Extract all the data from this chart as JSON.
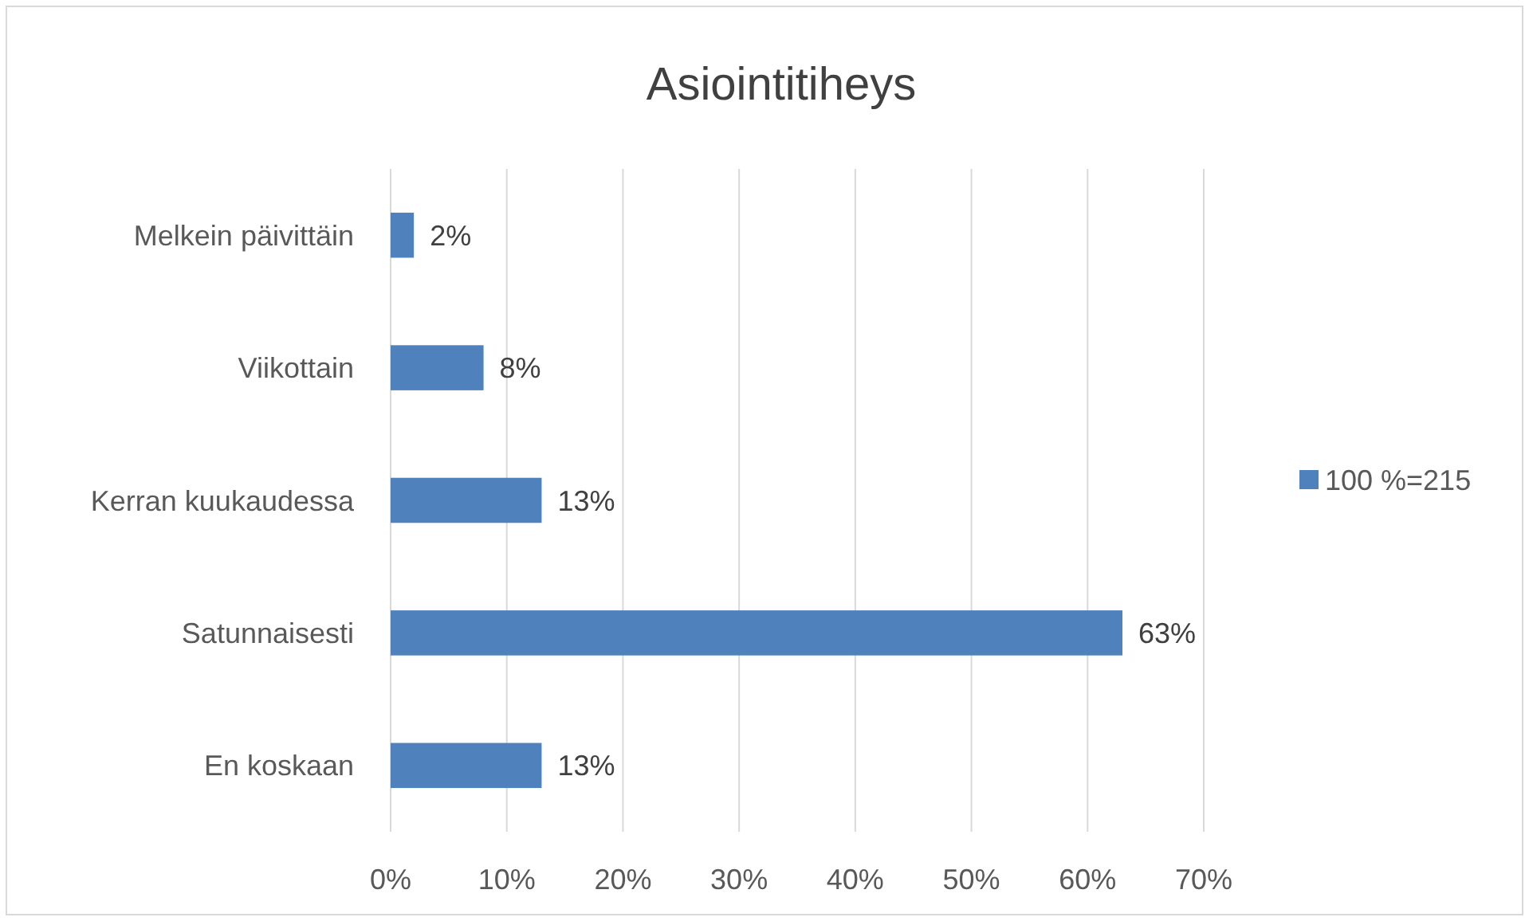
{
  "chart_data": {
    "type": "bar",
    "orientation": "horizontal",
    "title": "Asiointitiheys",
    "categories": [
      "Melkein päivittäin",
      "Viikottain",
      "Kerran kuukaudessa",
      "Satunnaisesti",
      "En koskaan"
    ],
    "series": [
      {
        "name": "100 %=215",
        "color": "#4f81bd",
        "values": [
          2,
          8,
          13,
          63,
          13
        ],
        "value_labels": [
          "2%",
          "8%",
          "13%",
          "63%",
          "13%"
        ]
      }
    ],
    "xlim": [
      0,
      70
    ],
    "xticks": [
      {
        "value": 0,
        "label": "0%"
      },
      {
        "value": 10,
        "label": "10%"
      },
      {
        "value": 20,
        "label": "20%"
      },
      {
        "value": 30,
        "label": "30%"
      },
      {
        "value": 40,
        "label": "40%"
      },
      {
        "value": 50,
        "label": "50%"
      },
      {
        "value": 60,
        "label": "60%"
      },
      {
        "value": 70,
        "label": "70%"
      }
    ],
    "grid": "x",
    "legend": "right"
  }
}
